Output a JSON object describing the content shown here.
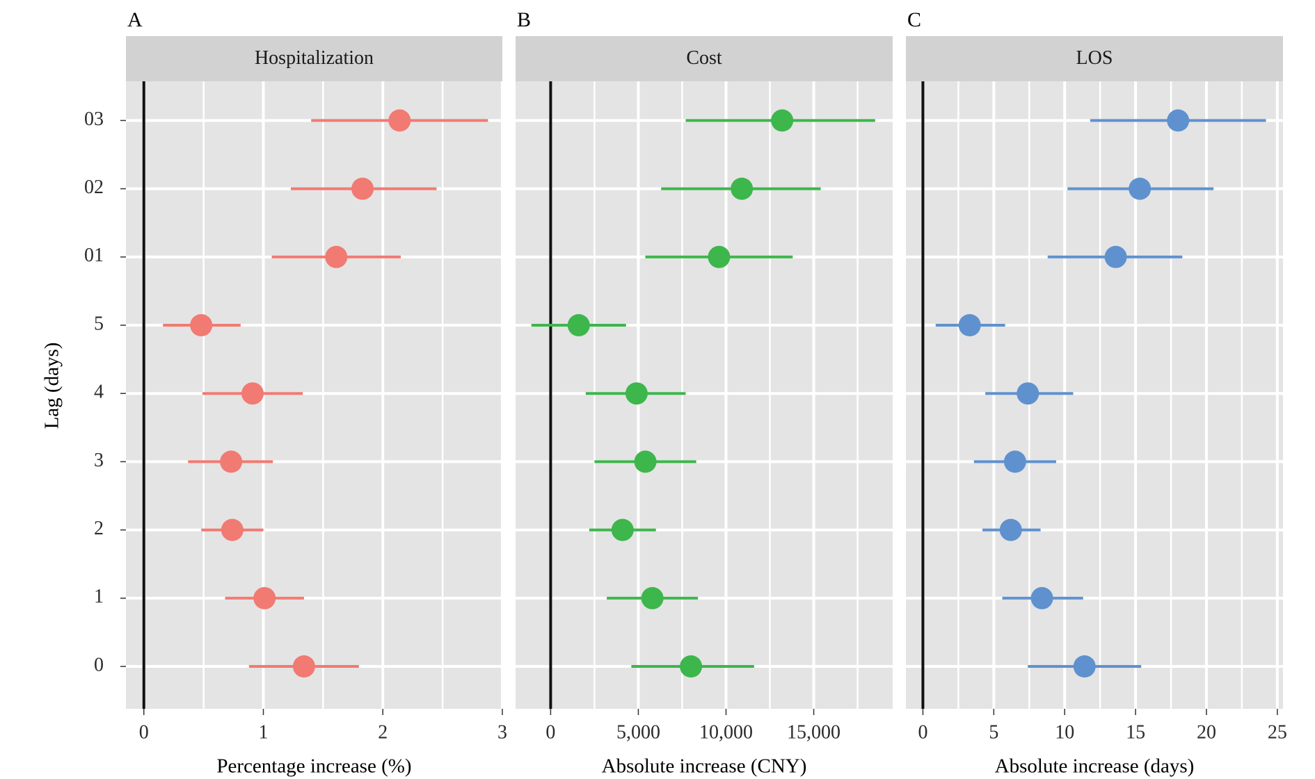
{
  "y_axis": {
    "title": "Lag (days)",
    "categories": [
      "0",
      "1",
      "2",
      "3",
      "4",
      "5",
      "01",
      "02",
      "03"
    ]
  },
  "chart_data": [
    {
      "type": "scatter",
      "panel": "A",
      "strip_title": "Hospitalization",
      "xlabel": "Percentage increase (%)",
      "ylabel": "Lag (days)",
      "xlim": [
        -0.15,
        3.0
      ],
      "xticks": [
        0,
        1,
        2,
        3
      ],
      "xtick_labels": [
        "0",
        "1",
        "2",
        "3"
      ],
      "color": "#F17A72",
      "reference_line": 0,
      "grid": true,
      "categories": [
        "0",
        "1",
        "2",
        "3",
        "4",
        "5",
        "01",
        "02",
        "03"
      ],
      "estimate": [
        1.34,
        1.01,
        0.74,
        0.73,
        0.91,
        0.48,
        1.61,
        1.83,
        2.14
      ],
      "lower": [
        0.88,
        0.68,
        0.48,
        0.37,
        0.49,
        0.16,
        1.07,
        1.23,
        1.4
      ],
      "upper": [
        1.8,
        1.34,
        1.0,
        1.08,
        1.33,
        0.81,
        2.15,
        2.45,
        2.88
      ]
    },
    {
      "type": "scatter",
      "panel": "B",
      "strip_title": "Cost",
      "xlabel": "Absolute increase (CNY)",
      "ylabel": "Lag (days)",
      "xlim": [
        -2000,
        19500
      ],
      "xticks": [
        0,
        5000,
        10000,
        15000
      ],
      "xtick_labels": [
        "0",
        "5,000",
        "10,000",
        "15,000"
      ],
      "color": "#3DB64C",
      "reference_line": 0,
      "grid": true,
      "categories": [
        "0",
        "1",
        "2",
        "3",
        "4",
        "5",
        "01",
        "02",
        "03"
      ],
      "estimate": [
        8000,
        5800,
        4100,
        5400,
        4900,
        1600,
        9600,
        10900,
        13200
      ],
      "lower": [
        4600,
        3200,
        2200,
        2500,
        2000,
        -1100,
        5400,
        6300,
        7700
      ],
      "upper": [
        11600,
        8400,
        6000,
        8300,
        7700,
        4300,
        13800,
        15400,
        18500
      ]
    },
    {
      "type": "scatter",
      "panel": "C",
      "strip_title": "LOS",
      "xlabel": "Absolute increase (days)",
      "ylabel": "Lag (days)",
      "xlim": [
        -1.2,
        25.4
      ],
      "xticks": [
        0,
        5,
        10,
        15,
        20,
        25
      ],
      "xtick_labels": [
        "0",
        "5",
        "10",
        "15",
        "20",
        "25"
      ],
      "color": "#5F91CF",
      "reference_line": 0,
      "grid": true,
      "categories": [
        "0",
        "1",
        "2",
        "3",
        "4",
        "5",
        "01",
        "02",
        "03"
      ],
      "estimate": [
        11.4,
        8.4,
        6.2,
        6.5,
        7.4,
        3.3,
        13.6,
        15.3,
        18.0
      ],
      "lower": [
        7.4,
        5.6,
        4.2,
        3.6,
        4.4,
        0.9,
        8.8,
        10.2,
        11.8
      ],
      "upper": [
        15.4,
        11.3,
        8.3,
        9.4,
        10.6,
        5.8,
        18.3,
        20.5,
        24.2
      ]
    }
  ]
}
